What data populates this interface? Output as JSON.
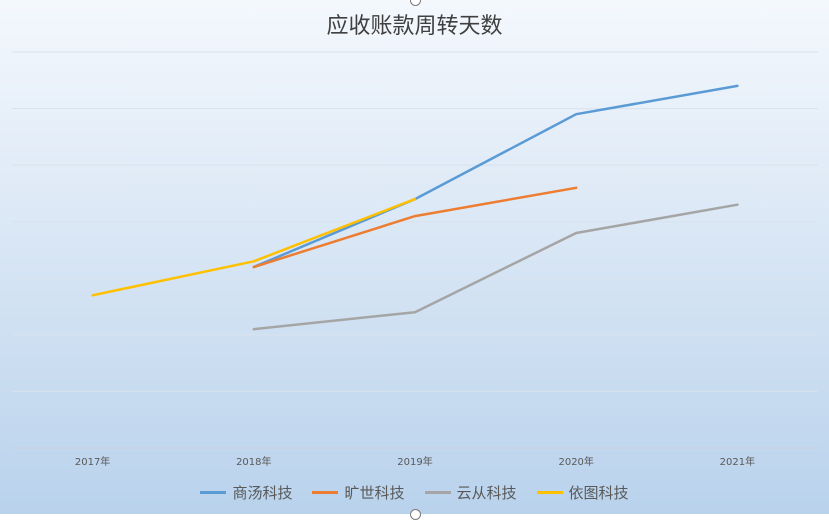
{
  "chart_data": {
    "type": "line",
    "title": "应收账款周转天数",
    "categories": [
      "2017年",
      "2018年",
      "2019年",
      "2020年",
      "2021年"
    ],
    "ylim": [
      0,
      7
    ],
    "grid": true,
    "legend": "bottom",
    "series": [
      {
        "name": "商汤科技",
        "color": "#5b9bd5",
        "values": [
          null,
          3.2,
          4.4,
          5.9,
          6.4
        ]
      },
      {
        "name": "旷世科技",
        "color": "#ed7d31",
        "values": [
          null,
          3.2,
          4.1,
          4.6,
          null
        ]
      },
      {
        "name": "云从科技",
        "color": "#a5a5a5",
        "values": [
          null,
          2.1,
          2.4,
          3.8,
          4.3
        ]
      },
      {
        "name": "依图科技",
        "color": "#ffc000",
        "values": [
          2.7,
          3.3,
          4.4,
          null,
          null
        ]
      }
    ]
  }
}
